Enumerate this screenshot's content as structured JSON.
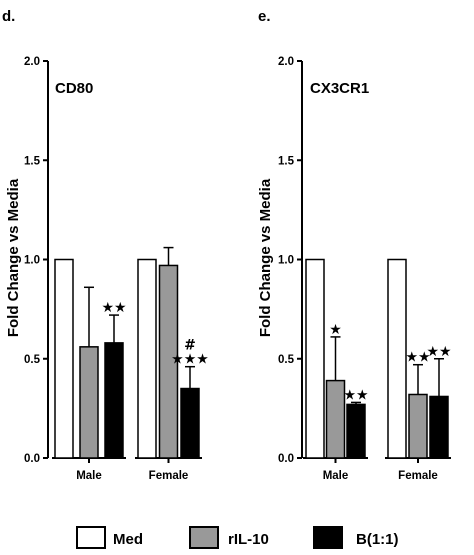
{
  "panels": [
    {
      "letter": "d."
    },
    {
      "letter": "e."
    }
  ],
  "legend": [
    {
      "name": "Med",
      "color": "#ffffff"
    },
    {
      "name": "rIL-10",
      "color": "#999999"
    },
    {
      "name": "B(1:1)",
      "color": "#000000"
    }
  ],
  "chart_data": [
    {
      "type": "bar",
      "title": "CD80",
      "ylabel": "Fold Change vs Media",
      "xlabel": "",
      "ylim": [
        0,
        2.0
      ],
      "yticks": [
        "0.0",
        "0.5",
        "1.0",
        "1.5",
        "2.0"
      ],
      "categories": [
        "Male",
        "Female"
      ],
      "series": [
        {
          "name": "Med",
          "color": "#ffffff",
          "values": [
            1.0,
            1.0
          ],
          "errors": [
            0,
            0
          ]
        },
        {
          "name": "rIL-10",
          "color": "#999999",
          "values": [
            0.56,
            0.97
          ],
          "errors": [
            0.3,
            0.09
          ]
        },
        {
          "name": "B(1:1)",
          "color": "#000000",
          "values": [
            0.58,
            0.35
          ],
          "errors": [
            0.14,
            0.11
          ]
        }
      ],
      "annotations": [
        {
          "category": "Male",
          "series": "B(1:1)",
          "text": "★★"
        },
        {
          "category": "Female",
          "series": "B(1:1)",
          "text": "★★★"
        },
        {
          "category": "Female",
          "series": "B(1:1)",
          "text": "#"
        }
      ],
      "grid": false
    },
    {
      "type": "bar",
      "title": "CX3CR1",
      "ylabel": "Fold Change vs Media",
      "xlabel": "",
      "ylim": [
        0,
        2.0
      ],
      "yticks": [
        "0.0",
        "0.5",
        "1.0",
        "1.5",
        "2.0"
      ],
      "categories": [
        "Male",
        "Female"
      ],
      "series": [
        {
          "name": "Med",
          "color": "#ffffff",
          "values": [
            1.0,
            1.0
          ],
          "errors": [
            0,
            0
          ]
        },
        {
          "name": "rIL-10",
          "color": "#999999",
          "values": [
            0.39,
            0.32
          ],
          "errors": [
            0.22,
            0.15
          ]
        },
        {
          "name": "B(1:1)",
          "color": "#000000",
          "values": [
            0.27,
            0.31
          ],
          "errors": [
            0.01,
            0.19
          ]
        }
      ],
      "annotations": [
        {
          "category": "Male",
          "series": "rIL-10",
          "text": "★"
        },
        {
          "category": "Male",
          "series": "B(1:1)",
          "text": "★★"
        },
        {
          "category": "Female",
          "series": "rIL-10",
          "text": "★★"
        },
        {
          "category": "Female",
          "series": "B(1:1)",
          "text": "★★"
        }
      ],
      "grid": false
    }
  ]
}
